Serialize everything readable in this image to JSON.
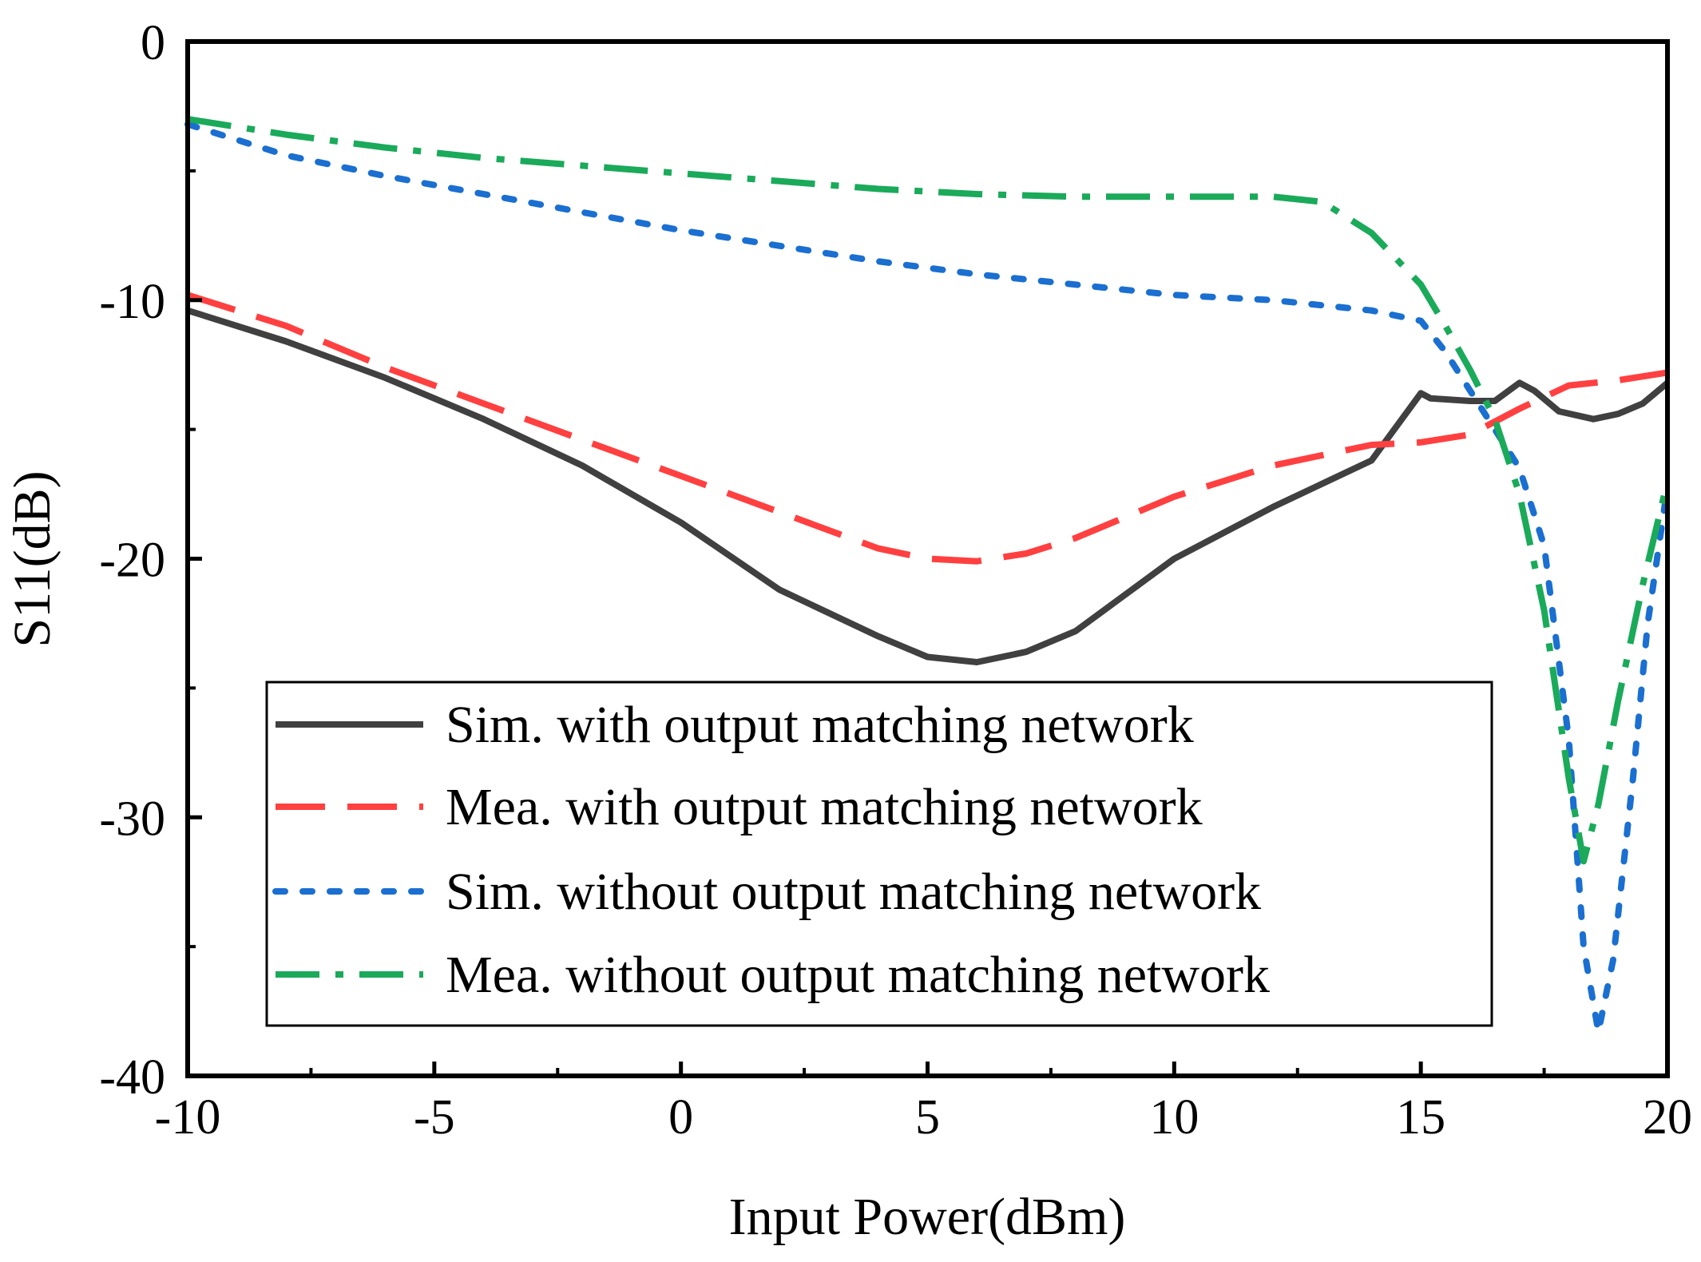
{
  "chart_data": {
    "type": "line",
    "title": "",
    "xlabel": "Input Power(dBm)",
    "ylabel": "S11(dB)",
    "xlim": [
      -10,
      20
    ],
    "ylim": [
      -40,
      0
    ],
    "xticks": [
      -10,
      -5,
      0,
      5,
      10,
      15,
      20
    ],
    "yticks": [
      0,
      -10,
      -20,
      -30,
      -40
    ],
    "xtick_labels": [
      "-10",
      "-5",
      "0",
      "5",
      "10",
      "15",
      "20"
    ],
    "ytick_labels": [
      "0",
      "-10",
      "-20",
      "-30",
      "-40"
    ],
    "grid": false,
    "legend_position": "bottom-center",
    "series": [
      {
        "name": "Sim. with output matching network",
        "color": "#404040",
        "style": "solid",
        "x": [
          -10,
          -8,
          -6,
          -4,
          -2,
          0,
          2,
          4,
          5,
          6,
          7,
          8,
          10,
          12,
          14,
          15,
          15.2,
          16,
          16.5,
          17,
          17.3,
          17.8,
          18.5,
          19,
          19.5,
          20
        ],
        "y": [
          -10.4,
          -11.6,
          -13.0,
          -14.6,
          -16.4,
          -18.6,
          -21.2,
          -23.0,
          -23.8,
          -24.0,
          -23.6,
          -22.8,
          -20.0,
          -18.0,
          -16.2,
          -13.6,
          -13.8,
          -13.9,
          -13.9,
          -13.2,
          -13.5,
          -14.3,
          -14.6,
          -14.4,
          -14.0,
          -13.2
        ]
      },
      {
        "name": "Mea. with output matching network",
        "color": "#FF4040",
        "style": "dashed",
        "x": [
          -10,
          -8,
          -6,
          -4,
          -2,
          0,
          2,
          4,
          5,
          6,
          7,
          8,
          10,
          12,
          14,
          15,
          16,
          17,
          18,
          19,
          20
        ],
        "y": [
          -9.8,
          -11.0,
          -12.6,
          -14.0,
          -15.4,
          -16.8,
          -18.2,
          -19.6,
          -20.0,
          -20.1,
          -19.8,
          -19.2,
          -17.6,
          -16.4,
          -15.6,
          -15.5,
          -15.2,
          -14.2,
          -13.3,
          -13.1,
          -12.8
        ]
      },
      {
        "name": "Sim. without output matching network",
        "color": "#1A6FD0",
        "style": "dotted",
        "x": [
          -10,
          -8,
          -6,
          -4,
          -2,
          0,
          2,
          4,
          6,
          8,
          10,
          12,
          14,
          15,
          15.5,
          16,
          16.5,
          17,
          17.5,
          18,
          18.3,
          18.6,
          18.9,
          19.3,
          19.6,
          20
        ],
        "y": [
          -3.2,
          -4.4,
          -5.2,
          -5.9,
          -6.6,
          -7.3,
          -7.9,
          -8.5,
          -9.0,
          -9.4,
          -9.8,
          -10.0,
          -10.4,
          -10.8,
          -12.0,
          -13.5,
          -15.0,
          -16.5,
          -19.5,
          -27.0,
          -35.0,
          -38.3,
          -35.5,
          -28.5,
          -22.5,
          -17.2
        ]
      },
      {
        "name": "Mea. without output matching network",
        "color": "#1AAA5A",
        "style": "dashdot",
        "x": [
          -10,
          -8,
          -6,
          -4,
          -2,
          0,
          2,
          4,
          6,
          8,
          10,
          12,
          13,
          14,
          15,
          15.5,
          16,
          16.5,
          17,
          17.5,
          18,
          18.3,
          18.6,
          19,
          19.5,
          20
        ],
        "y": [
          -3.0,
          -3.6,
          -4.1,
          -4.5,
          -4.8,
          -5.1,
          -5.4,
          -5.7,
          -5.9,
          -6.0,
          -6.0,
          -6.0,
          -6.2,
          -7.4,
          -9.4,
          -11.0,
          -12.7,
          -14.6,
          -17.5,
          -22.0,
          -28.5,
          -31.7,
          -29.5,
          -25.5,
          -21.0,
          -17.0
        ]
      }
    ]
  }
}
